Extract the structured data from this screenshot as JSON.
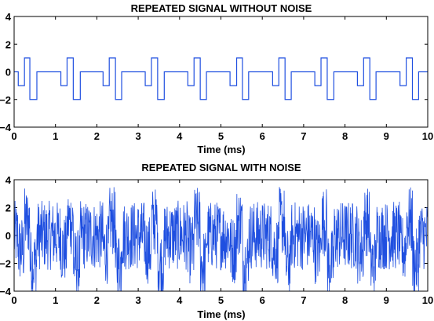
{
  "chart_data": [
    {
      "type": "line",
      "title": "REPEATED SIGNAL WITHOUT NOISE",
      "xlabel": "Time (ms)",
      "ylabel": "",
      "xlim": [
        0,
        10
      ],
      "ylim": [
        -4,
        4
      ],
      "xticks": [
        0,
        1,
        2,
        3,
        4,
        5,
        6,
        7,
        8,
        9,
        10
      ],
      "yticks": [
        -4,
        -2,
        0,
        2,
        4
      ],
      "xtick_labels": [
        "0",
        "1",
        "2",
        "3",
        "4",
        "5",
        "6",
        "7",
        "8",
        "9",
        "10"
      ],
      "ytick_labels": [
        "−4",
        "−2",
        "0",
        "2",
        "4"
      ],
      "grid": false,
      "line_color": "#1f4fe0",
      "series": [
        {
          "values_description": "square pulse train",
          "x": [
            0,
            0.1,
            0.1,
            0.25,
            0.25,
            0.38,
            0.38,
            0.55,
            0.55,
            1.13,
            1.13,
            1.28,
            1.28,
            1.43,
            1.43,
            1.6,
            1.6,
            2.15,
            2.15,
            2.3,
            2.3,
            2.45,
            2.45,
            2.6,
            2.6,
            3.17,
            3.17,
            3.32,
            3.32,
            3.47,
            3.47,
            3.63,
            3.63,
            4.2,
            4.2,
            4.35,
            4.35,
            4.5,
            4.5,
            4.65,
            4.65,
            5.22,
            5.22,
            5.38,
            5.38,
            5.52,
            5.52,
            5.67,
            5.67,
            6.25,
            6.25,
            6.4,
            6.4,
            6.55,
            6.55,
            6.7,
            6.7,
            7.27,
            7.27,
            7.42,
            7.42,
            7.57,
            7.57,
            7.73,
            7.73,
            8.3,
            8.3,
            8.45,
            8.45,
            8.6,
            8.6,
            8.75,
            8.75,
            9.33,
            9.33,
            9.48,
            9.48,
            9.63,
            9.63,
            9.78,
            9.78,
            10
          ],
          "y": [
            0,
            0,
            -1,
            -1,
            1,
            1,
            -2,
            -2,
            0,
            0,
            -1,
            -1,
            1,
            1,
            -2,
            -2,
            0,
            0,
            -1,
            -1,
            1,
            1,
            -2,
            -2,
            0,
            0,
            -1,
            -1,
            1,
            1,
            -2,
            -2,
            0,
            0,
            -1,
            -1,
            1,
            1,
            -2,
            -2,
            0,
            0,
            -1,
            -1,
            1,
            1,
            -2,
            -2,
            0,
            0,
            -1,
            -1,
            1,
            1,
            -2,
            -2,
            0,
            0,
            -1,
            -1,
            1,
            1,
            -2,
            -2,
            0,
            0,
            -1,
            -1,
            1,
            1,
            -2,
            -2,
            0,
            0,
            -1,
            -1,
            1,
            1,
            -2,
            -2,
            0,
            0
          ]
        }
      ]
    },
    {
      "type": "line",
      "title": "REPEATED SIGNAL WITH NOISE",
      "xlabel": "Time (ms)",
      "ylabel": "",
      "xlim": [
        0,
        10
      ],
      "ylim": [
        -4,
        4
      ],
      "xticks": [
        0,
        1,
        2,
        3,
        4,
        5,
        6,
        7,
        8,
        9,
        10
      ],
      "yticks": [
        -4,
        -2,
        0,
        2,
        4
      ],
      "xtick_labels": [
        "0",
        "1",
        "2",
        "3",
        "4",
        "5",
        "6",
        "7",
        "8",
        "9",
        "10"
      ],
      "ytick_labels": [
        "−4",
        "−2",
        "0",
        "2",
        "4"
      ],
      "grid": false,
      "line_color": "#1f4fe0",
      "noise_amplitude": 2.5,
      "series": [
        {
          "base_signal": "same pulse train as top panel with added dense random noise",
          "x": [
            0,
            0.1,
            0.1,
            0.25,
            0.25,
            0.38,
            0.38,
            0.55,
            0.55,
            1.13,
            1.13,
            1.28,
            1.28,
            1.43,
            1.43,
            1.6,
            1.6,
            2.15,
            2.15,
            2.3,
            2.3,
            2.45,
            2.45,
            2.6,
            2.6,
            3.17,
            3.17,
            3.32,
            3.32,
            3.47,
            3.47,
            3.63,
            3.63,
            4.2,
            4.2,
            4.35,
            4.35,
            4.5,
            4.5,
            4.65,
            4.65,
            5.22,
            5.22,
            5.38,
            5.38,
            5.52,
            5.52,
            5.67,
            5.67,
            6.25,
            6.25,
            6.4,
            6.4,
            6.55,
            6.55,
            6.7,
            6.7,
            7.27,
            7.27,
            7.42,
            7.42,
            7.57,
            7.57,
            7.73,
            7.73,
            8.3,
            8.3,
            8.45,
            8.45,
            8.6,
            8.6,
            8.75,
            8.75,
            9.33,
            9.33,
            9.48,
            9.48,
            9.63,
            9.63,
            9.78,
            9.78,
            10
          ],
          "y": [
            0,
            0,
            -1,
            -1,
            1,
            1,
            -2,
            -2,
            0,
            0,
            -1,
            -1,
            1,
            1,
            -2,
            -2,
            0,
            0,
            -1,
            -1,
            1,
            1,
            -2,
            -2,
            0,
            0,
            -1,
            -1,
            1,
            1,
            -2,
            -2,
            0,
            0,
            -1,
            -1,
            1,
            1,
            -2,
            -2,
            0,
            0,
            -1,
            -1,
            1,
            1,
            -2,
            -2,
            0,
            0,
            -1,
            -1,
            1,
            1,
            -2,
            -2,
            0,
            0,
            -1,
            -1,
            1,
            1,
            -2,
            -2,
            0,
            0,
            -1,
            -1,
            1,
            1,
            -2,
            -2,
            0,
            0,
            -1,
            -1,
            1,
            1,
            -2,
            -2,
            0,
            0
          ]
        }
      ]
    }
  ]
}
